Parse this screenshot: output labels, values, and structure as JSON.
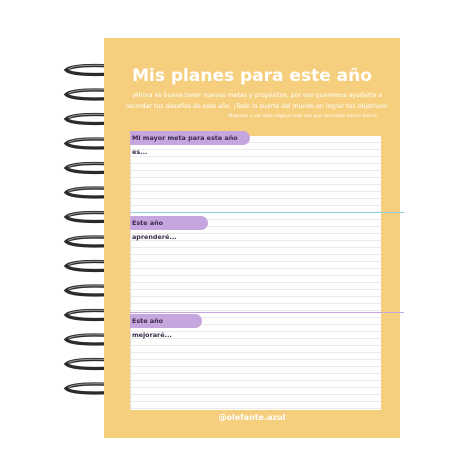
{
  "page": {
    "title": "Mis planes para este año",
    "intro": "¡Ahora es buena tener nuevas metas y propósitos, por eso queremos ayudarte a recordar tus desafíos de este año. ¡Todo la suerte del mundo en lograr tus objetivos!",
    "note": "*Regresa a ver esta página cada vez que necesites nuevo ánimo.",
    "sections": [
      {
        "label": "Mi mayor meta para este año es..."
      },
      {
        "label": "Este año aprenderé..."
      },
      {
        "label": "Este año mejoraré..."
      }
    ],
    "handle": "@olefante.azul"
  },
  "colors": {
    "cover": "#f6cf7e",
    "tab": "#c6a6df",
    "divider_1": "#8bd1de",
    "divider_2": "#c6a6df"
  }
}
